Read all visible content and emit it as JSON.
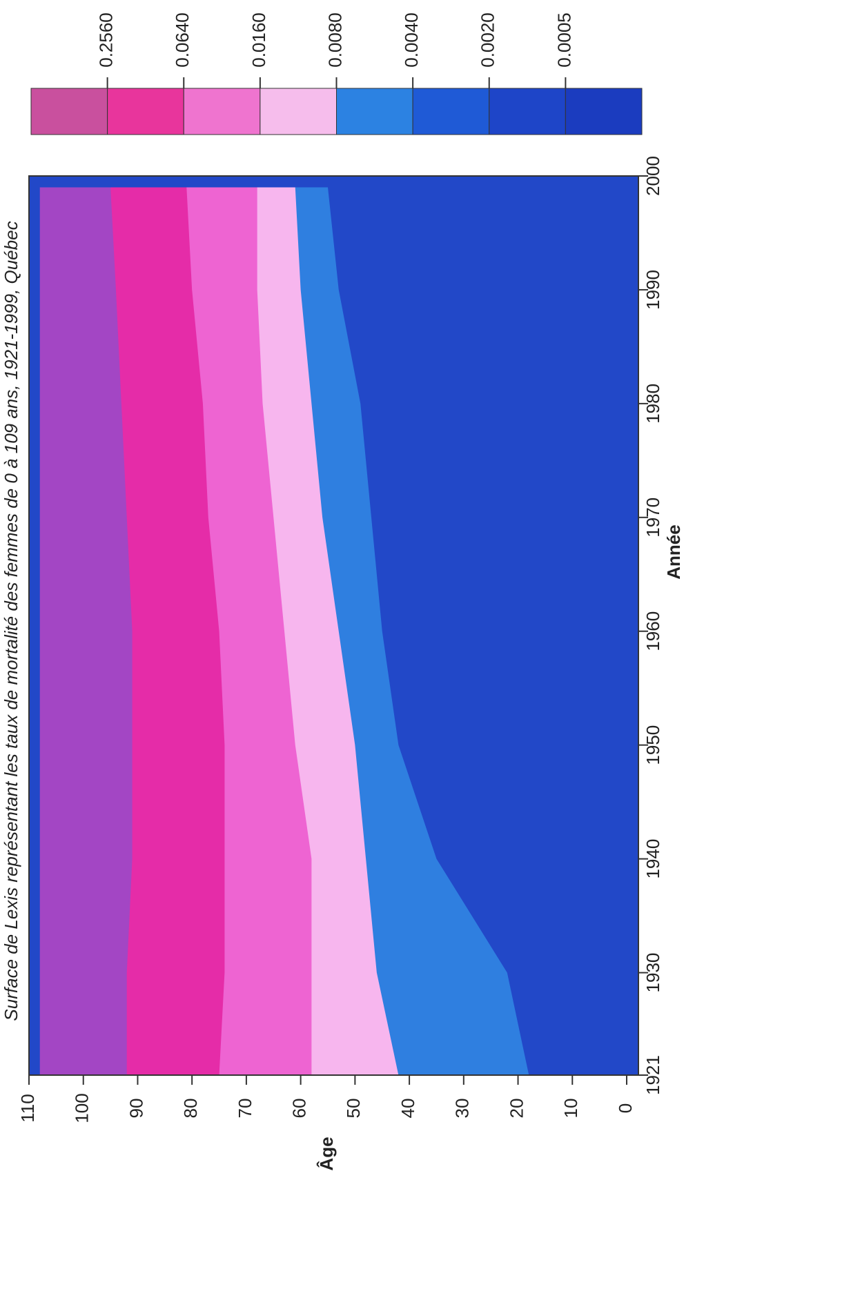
{
  "chart_data": {
    "type": "lexis",
    "title": "Surface de Lexis représentant les taux de mortalité des femmes de 0 à 109 ans, 1921-1999, Québec",
    "x_label": "Année",
    "y_label": "Âge",
    "xlim": [
      1921,
      2000
    ],
    "ylim": [
      0,
      110
    ],
    "xticks": [
      1921,
      1930,
      1940,
      1950,
      1960,
      1970,
      1980,
      1990,
      2000
    ],
    "yticks": [
      0,
      10,
      20,
      30,
      40,
      50,
      60,
      70,
      80,
      90,
      100,
      110
    ],
    "x": [
      1921,
      1930,
      1940,
      1950,
      1960,
      1970,
      1980,
      1990,
      1999
    ],
    "bands": [
      {
        "color": "#a346c4",
        "values": [
          108,
          108,
          108,
          108,
          108,
          108,
          108,
          108,
          108
        ]
      },
      {
        "color": "#e52ca8",
        "values": [
          92,
          92,
          91,
          91,
          91,
          92,
          93,
          94,
          95
        ]
      },
      {
        "color": "#ee64d2",
        "values": [
          75,
          74,
          74,
          74,
          75,
          77,
          78,
          80,
          81
        ]
      },
      {
        "color": "#f7b6ee",
        "values": [
          58,
          58,
          58,
          61,
          63,
          65,
          67,
          68,
          68
        ]
      },
      {
        "color": "#2f7fe0",
        "values": [
          42,
          46,
          48,
          50,
          53,
          56,
          58,
          60,
          61
        ]
      },
      {
        "color": "#2248c8",
        "values": [
          18,
          22,
          35,
          42,
          45,
          47,
          49,
          53,
          55
        ]
      }
    ],
    "legend": {
      "colors": [
        "#c9509e",
        "#e8359c",
        "#ef74cf",
        "#f6bdec",
        "#2c82e2",
        "#1f5ad6",
        "#1e45c8",
        "#1b3cbf"
      ],
      "levels": [
        {
          "value": 0.256,
          "label": "0.2560"
        },
        {
          "value": 0.064,
          "label": "0.0640"
        },
        {
          "value": 0.016,
          "label": "0.0160"
        },
        {
          "value": 0.008,
          "label": "0.0080"
        },
        {
          "value": 0.004,
          "label": "0.0040"
        },
        {
          "value": 0.002,
          "label": "0.0020"
        },
        {
          "value": 0.0005,
          "label": "0.0005"
        }
      ]
    }
  }
}
